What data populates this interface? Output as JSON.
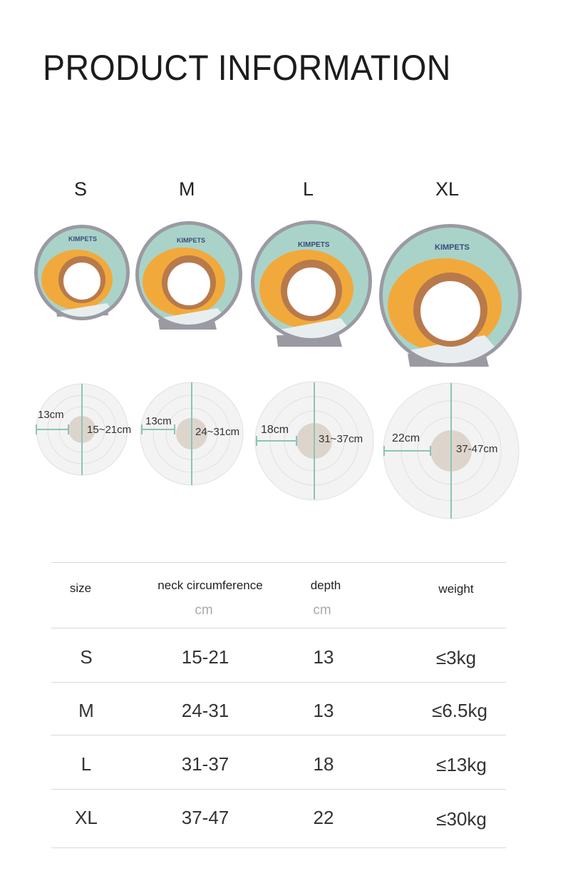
{
  "title": "PRODUCT INFORMATION",
  "brand": "KIMPETS",
  "sizes": [
    "S",
    "M",
    "L",
    "XL"
  ],
  "diagrams": [
    {
      "depth": "13cm",
      "neck": "15~21cm"
    },
    {
      "depth": "13cm",
      "neck": "24~31cm"
    },
    {
      "depth": "18cm",
      "neck": "31~37cm"
    },
    {
      "depth": "22cm",
      "neck": "37-47cm"
    }
  ],
  "table": {
    "headers": {
      "size": "size",
      "neck": "neck circumference",
      "depth": "depth",
      "weight": "weight"
    },
    "units": {
      "neck": "cm",
      "depth": "cm"
    },
    "rows": [
      {
        "size": "S",
        "neck": "15-21",
        "depth": "13",
        "weight": "≤3kg"
      },
      {
        "size": "M",
        "neck": "24-31",
        "depth": "13",
        "weight": "≤6.5kg"
      },
      {
        "size": "L",
        "neck": "31-37",
        "depth": "18",
        "weight": "≤13kg"
      },
      {
        "size": "XL",
        "neck": "37-47",
        "depth": "22",
        "weight": "≤30kg"
      }
    ]
  },
  "colors": {
    "teal": "#a9d3c9",
    "orange": "#f2a93b",
    "grey": "#9b9aa3",
    "line": "#8cc4b6"
  }
}
